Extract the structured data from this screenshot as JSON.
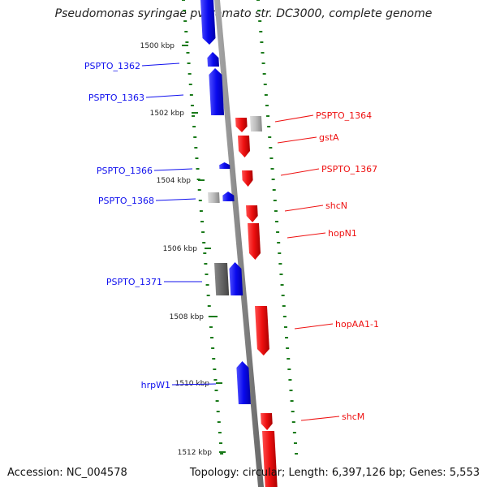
{
  "title": "Pseudomonas syringae pv. tomato str. DC3000, complete genome",
  "footer": {
    "accession": "Accession: NC_004578",
    "summary": "Topology: circular; Length: 6,397,126 bp; Genes: 5,553"
  },
  "colors": {
    "forward": "#1010ee",
    "reverse": "#ee1010",
    "pseudo_light": "#bbbbbb",
    "pseudo_dark": "#666666",
    "backbone": "#888888",
    "ticks": "#1a7a1a"
  },
  "scale_labels": [
    "1500 kbp",
    "1502 kbp",
    "1504 kbp",
    "1506 kbp",
    "1508 kbp",
    "1510 kbp",
    "1512 kbp"
  ],
  "forward_labels": [
    "PSPTO_1362",
    "PSPTO_1363",
    "PSPTO_1366",
    "PSPTO_1368",
    "PSPTO_1371",
    "hrpW1"
  ],
  "reverse_labels": [
    "PSPTO_1364",
    "gstA",
    "PSPTO_1367",
    "shcN",
    "hopN1",
    "hopAA1-1",
    "shcM"
  ]
}
